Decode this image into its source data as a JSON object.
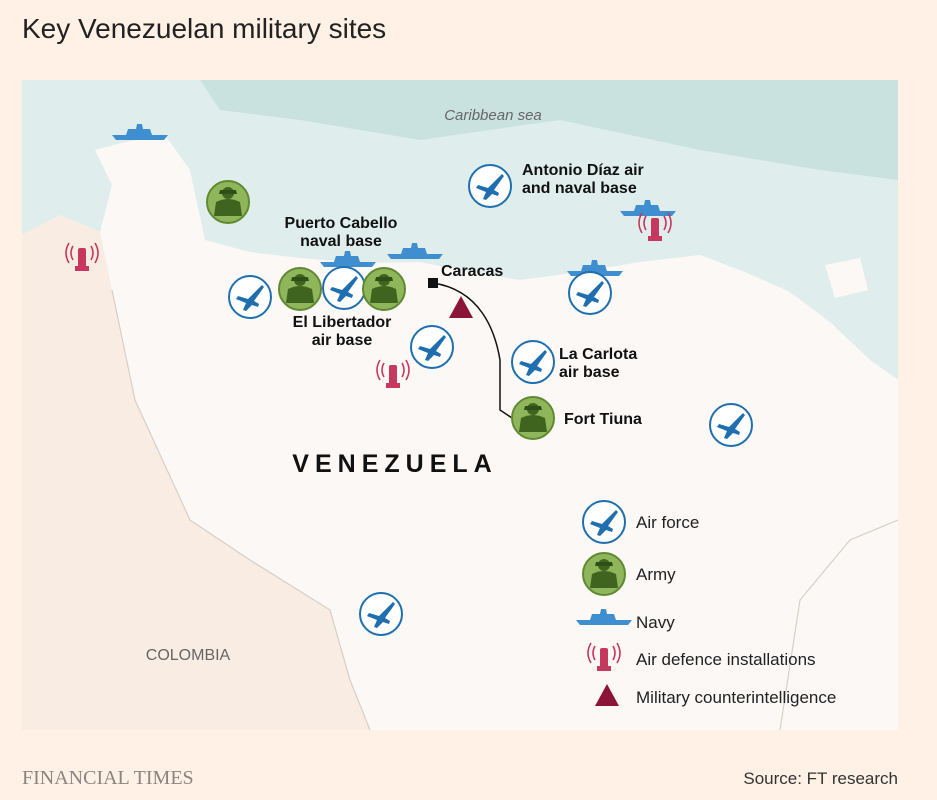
{
  "header": {
    "title": "Key Venezuelan military sites"
  },
  "map": {
    "sea_label": "Caribbean sea",
    "country_label": "VENEZUELA",
    "neighbor_label": "COLOMBIA",
    "capital": "Caracas",
    "sites": [
      {
        "lines": [
          "Antonio Díaz air",
          "and naval base"
        ]
      },
      {
        "lines": [
          "Puerto Cabello",
          "naval base"
        ]
      },
      {
        "lines": [
          "El Libertador",
          "air base"
        ]
      },
      {
        "lines": [
          "La Carlota",
          "air base"
        ]
      },
      {
        "lines": [
          "Fort Tiuna"
        ]
      }
    ]
  },
  "legend": [
    {
      "label": "Air force"
    },
    {
      "label": "Army"
    },
    {
      "label": "Navy"
    },
    {
      "label": "Air defence installations"
    },
    {
      "label": "Military counterintelligence"
    }
  ],
  "footer": {
    "brand": "FINANCIAL TIMES",
    "source": "Source: FT research"
  }
}
